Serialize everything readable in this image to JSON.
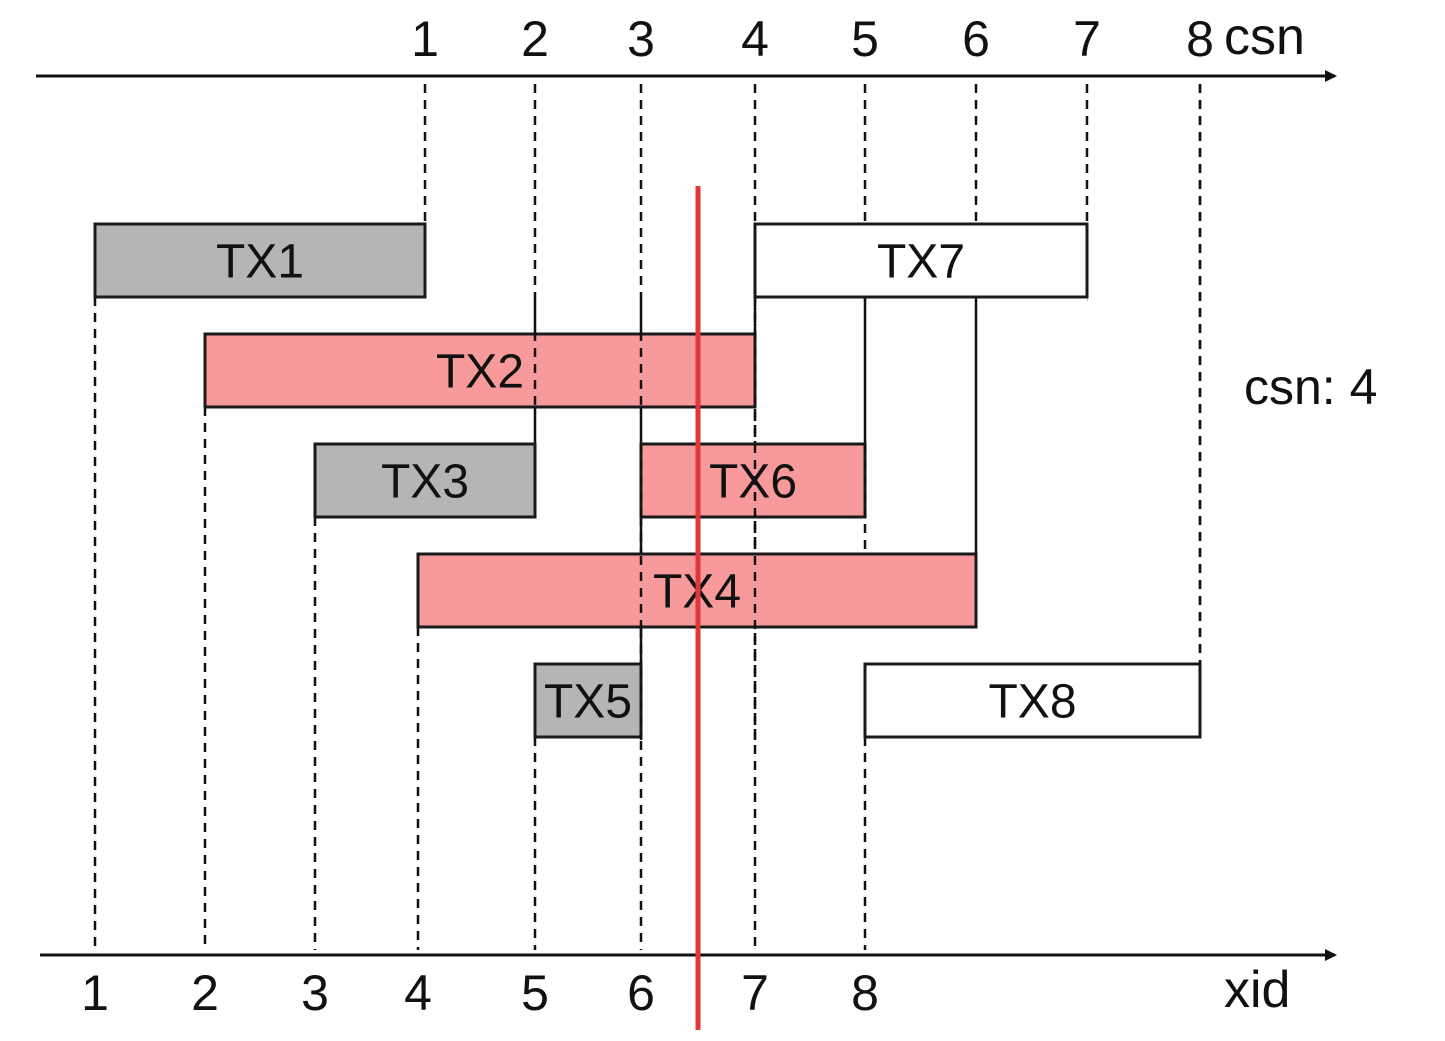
{
  "csn_axis": {
    "name": "csn",
    "ticks": [
      "1",
      "2",
      "3",
      "4",
      "5",
      "6",
      "7",
      "8"
    ]
  },
  "xid_axis": {
    "name": "xid",
    "ticks": [
      "1",
      "2",
      "3",
      "4",
      "5",
      "6",
      "7",
      "8"
    ]
  },
  "snapshot_label": "csn: 4",
  "snapshot_xid_marker": 6.5,
  "colors": {
    "committed_visible": "#b5b5b5",
    "in_progress": "#f89a9c",
    "not_started": "#ffffff",
    "marker": "#e0383a",
    "stroke": "#1a1a1a"
  },
  "transactions": [
    {
      "label": "TX1",
      "start_xid": 1,
      "commit_csn": 1,
      "state": "committed_visible"
    },
    {
      "label": "TX2",
      "start_xid": 2,
      "commit_csn": 4,
      "state": "in_progress"
    },
    {
      "label": "TX3",
      "start_xid": 3,
      "commit_csn": 2,
      "state": "committed_visible"
    },
    {
      "label": "TX4",
      "start_xid": 4,
      "commit_csn": 6,
      "state": "in_progress"
    },
    {
      "label": "TX5",
      "start_xid": 5,
      "commit_csn": 3,
      "state": "committed_visible"
    },
    {
      "label": "TX6",
      "start_xid": 6,
      "commit_csn": 5,
      "state": "in_progress"
    },
    {
      "label": "TX7",
      "start_xid": 7,
      "commit_csn": 7,
      "state": "not_started"
    },
    {
      "label": "TX8",
      "start_xid": 8,
      "commit_csn": 8,
      "state": "not_started"
    }
  ]
}
